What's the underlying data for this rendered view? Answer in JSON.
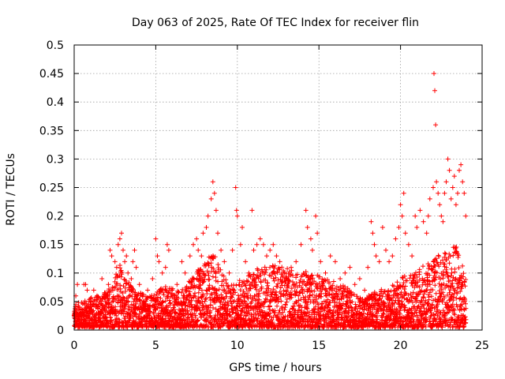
{
  "chart_data": {
    "type": "scatter",
    "title": "Day 063 of 2025, Rate Of TEC Index for receiver flin",
    "xlabel": "GPS time / hours",
    "ylabel": "ROTI / TECUs",
    "xlim": [
      0,
      25
    ],
    "ylim": [
      0,
      0.5
    ],
    "x_ticks": [
      0,
      5,
      10,
      15,
      20,
      25
    ],
    "x_tick_labels": [
      "0",
      "5",
      "10",
      "15",
      "20",
      "25"
    ],
    "y_ticks": [
      0,
      0.05,
      0.1,
      0.15,
      0.2,
      0.25,
      0.3,
      0.35,
      0.4,
      0.45,
      0.5
    ],
    "y_tick_labels": [
      "0",
      "0.05",
      "0.1",
      "0.15",
      "0.2",
      "0.25",
      "0.3",
      "0.35",
      "0.4",
      "0.45",
      "0.5"
    ],
    "grid": true,
    "marker": "+",
    "marker_color": "#ff0000",
    "series": [
      {
        "name": "ROTI",
        "points": [
          [
            0.05,
            0.02
          ],
          [
            0.1,
            0.06
          ],
          [
            0.2,
            0.08
          ],
          [
            0.3,
            0.04
          ],
          [
            0.5,
            0.03
          ],
          [
            0.6,
            0.08
          ],
          [
            0.7,
            0.08
          ],
          [
            0.8,
            0.07
          ],
          [
            0.9,
            0.05
          ],
          [
            1.2,
            0.07
          ],
          [
            1.4,
            0.06
          ],
          [
            1.7,
            0.09
          ],
          [
            1.9,
            0.05
          ],
          [
            2.1,
            0.08
          ],
          [
            2.2,
            0.14
          ],
          [
            2.3,
            0.13
          ],
          [
            2.5,
            0.12
          ],
          [
            2.6,
            0.11
          ],
          [
            2.7,
            0.15
          ],
          [
            2.8,
            0.16
          ],
          [
            2.9,
            0.17
          ],
          [
            3.0,
            0.14
          ],
          [
            3.1,
            0.12
          ],
          [
            3.2,
            0.13
          ],
          [
            3.3,
            0.1
          ],
          [
            3.5,
            0.09
          ],
          [
            3.6,
            0.12
          ],
          [
            3.7,
            0.14
          ],
          [
            3.8,
            0.11
          ],
          [
            4.0,
            0.08
          ],
          [
            4.2,
            0.06
          ],
          [
            4.5,
            0.07
          ],
          [
            4.8,
            0.09
          ],
          [
            5.0,
            0.16
          ],
          [
            5.1,
            0.13
          ],
          [
            5.2,
            0.12
          ],
          [
            5.4,
            0.1
          ],
          [
            5.6,
            0.11
          ],
          [
            5.7,
            0.15
          ],
          [
            5.8,
            0.14
          ],
          [
            6.0,
            0.07
          ],
          [
            6.3,
            0.08
          ],
          [
            6.6,
            0.12
          ],
          [
            6.8,
            0.1
          ],
          [
            7.1,
            0.13
          ],
          [
            7.3,
            0.15
          ],
          [
            7.5,
            0.16
          ],
          [
            7.6,
            0.14
          ],
          [
            7.8,
            0.13
          ],
          [
            7.9,
            0.17
          ],
          [
            8.1,
            0.18
          ],
          [
            8.2,
            0.2
          ],
          [
            8.4,
            0.23
          ],
          [
            8.5,
            0.26
          ],
          [
            8.6,
            0.24
          ],
          [
            8.7,
            0.21
          ],
          [
            8.8,
            0.17
          ],
          [
            9.0,
            0.14
          ],
          [
            9.2,
            0.12
          ],
          [
            9.5,
            0.1
          ],
          [
            9.7,
            0.14
          ],
          [
            9.9,
            0.25
          ],
          [
            9.95,
            0.21
          ],
          [
            10.0,
            0.2
          ],
          [
            10.2,
            0.15
          ],
          [
            10.3,
            0.18
          ],
          [
            10.5,
            0.12
          ],
          [
            10.7,
            0.1
          ],
          [
            10.9,
            0.21
          ],
          [
            11.0,
            0.14
          ],
          [
            11.2,
            0.15
          ],
          [
            11.4,
            0.16
          ],
          [
            11.6,
            0.15
          ],
          [
            11.8,
            0.13
          ],
          [
            12.0,
            0.14
          ],
          [
            12.2,
            0.15
          ],
          [
            12.4,
            0.13
          ],
          [
            12.6,
            0.12
          ],
          [
            12.8,
            0.1
          ],
          [
            13.0,
            0.09
          ],
          [
            13.3,
            0.11
          ],
          [
            13.6,
            0.12
          ],
          [
            13.9,
            0.15
          ],
          [
            14.2,
            0.21
          ],
          [
            14.3,
            0.18
          ],
          [
            14.5,
            0.16
          ],
          [
            14.6,
            0.14
          ],
          [
            14.8,
            0.2
          ],
          [
            14.9,
            0.17
          ],
          [
            15.1,
            0.12
          ],
          [
            15.4,
            0.1
          ],
          [
            15.7,
            0.13
          ],
          [
            16.0,
            0.12
          ],
          [
            16.3,
            0.09
          ],
          [
            16.6,
            0.1
          ],
          [
            16.9,
            0.11
          ],
          [
            17.2,
            0.08
          ],
          [
            17.5,
            0.09
          ],
          [
            17.8,
            0.07
          ],
          [
            18.0,
            0.11
          ],
          [
            18.2,
            0.19
          ],
          [
            18.3,
            0.17
          ],
          [
            18.4,
            0.15
          ],
          [
            18.5,
            0.13
          ],
          [
            18.7,
            0.12
          ],
          [
            18.9,
            0.18
          ],
          [
            19.1,
            0.14
          ],
          [
            19.3,
            0.12
          ],
          [
            19.5,
            0.13
          ],
          [
            19.7,
            0.16
          ],
          [
            19.9,
            0.18
          ],
          [
            20.0,
            0.22
          ],
          [
            20.1,
            0.2
          ],
          [
            20.2,
            0.24
          ],
          [
            20.3,
            0.17
          ],
          [
            20.5,
            0.15
          ],
          [
            20.7,
            0.13
          ],
          [
            20.9,
            0.2
          ],
          [
            21.0,
            0.18
          ],
          [
            21.2,
            0.21
          ],
          [
            21.4,
            0.19
          ],
          [
            21.6,
            0.17
          ],
          [
            21.7,
            0.2
          ],
          [
            21.8,
            0.23
          ],
          [
            22.0,
            0.25
          ],
          [
            22.05,
            0.45
          ],
          [
            22.1,
            0.42
          ],
          [
            22.15,
            0.36
          ],
          [
            22.2,
            0.26
          ],
          [
            22.3,
            0.24
          ],
          [
            22.4,
            0.22
          ],
          [
            22.5,
            0.2
          ],
          [
            22.6,
            0.19
          ],
          [
            22.7,
            0.24
          ],
          [
            22.8,
            0.26
          ],
          [
            22.9,
            0.3
          ],
          [
            23.0,
            0.28
          ],
          [
            23.1,
            0.23
          ],
          [
            23.2,
            0.25
          ],
          [
            23.3,
            0.27
          ],
          [
            23.4,
            0.22
          ],
          [
            23.5,
            0.24
          ],
          [
            23.6,
            0.28
          ],
          [
            23.7,
            0.29
          ],
          [
            23.8,
            0.26
          ],
          [
            23.9,
            0.24
          ],
          [
            24.0,
            0.2
          ]
        ]
      }
    ],
    "dense_band": {
      "description": "continuous band of low ROTI values across the whole day",
      "x_start": 0,
      "x_end": 24,
      "y_min": 0.005,
      "y_max_profile": [
        [
          0,
          0.04
        ],
        [
          1,
          0.05
        ],
        [
          2,
          0.06
        ],
        [
          2.8,
          0.1
        ],
        [
          3.5,
          0.07
        ],
        [
          4.5,
          0.05
        ],
        [
          5.5,
          0.07
        ],
        [
          6.5,
          0.06
        ],
        [
          7.5,
          0.09
        ],
        [
          8.5,
          0.12
        ],
        [
          9.5,
          0.07
        ],
        [
          10.5,
          0.08
        ],
        [
          11.5,
          0.1
        ],
        [
          12.5,
          0.1
        ],
        [
          13.5,
          0.09
        ],
        [
          14.5,
          0.09
        ],
        [
          15.5,
          0.08
        ],
        [
          16.5,
          0.07
        ],
        [
          17.5,
          0.05
        ],
        [
          18.5,
          0.06
        ],
        [
          19.5,
          0.07
        ],
        [
          20.5,
          0.09
        ],
        [
          21.5,
          0.1
        ],
        [
          22.5,
          0.12
        ],
        [
          23.5,
          0.13
        ],
        [
          24,
          0.08
        ]
      ],
      "step_hours": 0.025
    }
  }
}
